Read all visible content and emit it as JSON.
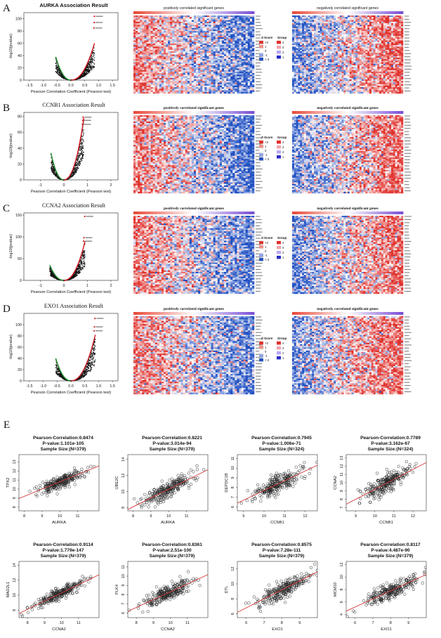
{
  "figure": {
    "panel_letters": [
      "A",
      "B",
      "C",
      "D",
      "E"
    ]
  },
  "rows": [
    {
      "letter": "A",
      "volcano_title": "AURKA Association Result",
      "heatmap_pos_title": "positively correlated significant genes",
      "heatmap_neg_title": "negatively correlated significant genes",
      "xlabel": "Pearson Correlation Coefficient (Pearson test)",
      "ylabel": "-log10(pvalue)"
    },
    {
      "letter": "B",
      "volcano_title": "CCNB1 Association Result",
      "heatmap_pos_title": "positively correlated significant genes",
      "heatmap_neg_title": "negatively correlated significant genes",
      "xlabel": "Pearson Correlation Coefficient (Pearson test)",
      "ylabel": "-log10(pvalue)"
    },
    {
      "letter": "C",
      "volcano_title": "CCNA2 Association Result",
      "heatmap_pos_title": "positively correlated significant genes",
      "heatmap_neg_title": "negatively correlated significant genes",
      "xlabel": "Pearson Correlation Coefficient (Pearson test)",
      "ylabel": "-log10(pvalue)"
    },
    {
      "letter": "D",
      "volcano_title": "EXO1 Association Result",
      "heatmap_pos_title": "positively correlated significant genes",
      "heatmap_neg_title": "negatively correlated significant genes",
      "xlabel": "Pearson Correlation Coefficient (Pearson test)",
      "ylabel": "-log10(pvalue)"
    }
  ],
  "heatmap_legend": {
    "zscore_title": "Z-Score",
    "group_title": "Group",
    "zscore_labels": [
      ">3",
      "1",
      "0",
      "-1",
      "<-3"
    ],
    "group_labels": [
      "4",
      "3",
      "2",
      "1"
    ]
  },
  "colors": {
    "positive": "#e0302b",
    "negative": "#1f4fc2",
    "neutral": "#ffffff",
    "volcano_pos": "#d0161d",
    "volcano_neg": "#1f8a2a",
    "point": "#111111",
    "fit_line": "#d43a3a"
  },
  "chart_data": [
    {
      "type": "scatter",
      "subtype": "volcano",
      "title": "AURKA Association Result",
      "xlabel": "Pearson Correlation Coefficient (Pearson test)",
      "ylabel": "-log10(pvalue)",
      "xlim": [
        -1.7,
        1.7
      ],
      "ylim": [
        0,
        110
      ],
      "xticks": [
        -1.5,
        -1.0,
        -0.5,
        0.0,
        0.5,
        1.0,
        1.5
      ],
      "xtick_labels": [
        "-1.5",
        "-1.0",
        "-0.5",
        "0.0",
        "0.5",
        "1.0",
        "1.5"
      ],
      "yticks": [
        0,
        20,
        40,
        60,
        80,
        100
      ],
      "ytick_labels": [
        "0",
        "20",
        "40",
        "60",
        "80",
        "100"
      ],
      "curve": {
        "neg_min": -0.55,
        "pos_max": 0.85,
        "ypeak_neg": 38,
        "ypeak_pos": 60
      },
      "highlight_points": [
        [
          0.85,
          104
        ],
        [
          0.84,
          94
        ],
        [
          0.83,
          85
        ]
      ]
    },
    {
      "type": "scatter",
      "subtype": "volcano",
      "title": "CCNB1 Association Result",
      "xlabel": "Pearson Correlation Coefficient (Pearson test)",
      "ylabel": "-log10(pvalue)",
      "xlim": [
        -1.7,
        2.3
      ],
      "ylim": [
        0,
        85
      ],
      "xticks": [
        -1,
        0,
        1,
        2
      ],
      "xtick_labels": [
        "-1",
        "0",
        "1",
        "2"
      ],
      "yticks": [
        0,
        20,
        40,
        60,
        80
      ],
      "ytick_labels": [
        "0",
        "20",
        "40",
        "60",
        "80"
      ],
      "curve": {
        "neg_min": -0.55,
        "pos_max": 0.85,
        "ypeak_neg": 34,
        "ypeak_pos": 78
      },
      "highlight_points": [
        [
          0.82,
          79
        ],
        [
          0.8,
          75
        ],
        [
          0.79,
          70
        ]
      ]
    },
    {
      "type": "scatter",
      "subtype": "volcano",
      "title": "CCNA2 Association Result",
      "xlabel": "Pearson Correlation Coefficient (Pearson test)",
      "ylabel": "-log10(pvalue)",
      "xlim": [
        -1.7,
        2.3
      ],
      "ylim": [
        0,
        155
      ],
      "xticks": [
        -1,
        0,
        1,
        2
      ],
      "xtick_labels": [
        "-1",
        "0",
        "1",
        "2"
      ],
      "yticks": [
        0,
        50,
        100,
        150
      ],
      "ytick_labels": [
        "0",
        "50",
        "100",
        "150"
      ],
      "curve": {
        "neg_min": -0.6,
        "pos_max": 0.9,
        "ypeak_neg": 35,
        "ypeak_pos": 90
      },
      "highlight_points": [
        [
          0.89,
          147
        ],
        [
          0.85,
          98
        ],
        [
          0.84,
          90
        ]
      ]
    },
    {
      "type": "scatter",
      "subtype": "volcano",
      "title": "EXO1 Association Result",
      "xlabel": "Pearson Correlation Coefficient (Pearson test)",
      "ylabel": "-log10(pvalue)",
      "xlim": [
        -1.7,
        1.7
      ],
      "ylim": [
        0,
        120
      ],
      "xticks": [
        -1.5,
        -1.0,
        -0.5,
        0.0,
        0.5,
        1.0,
        1.5
      ],
      "xtick_labels": [
        "-1.5",
        "-1.0",
        "-0.5",
        "0.0",
        "0.5",
        "1.0",
        "1.5"
      ],
      "yticks": [
        0,
        20,
        40,
        60,
        80,
        100
      ],
      "ytick_labels": [
        "0",
        "20",
        "40",
        "60",
        "80",
        "100"
      ],
      "curve": {
        "neg_min": -0.55,
        "pos_max": 0.88,
        "ypeak_neg": 40,
        "ypeak_pos": 82
      },
      "highlight_points": [
        [
          0.87,
          111
        ],
        [
          0.85,
          96
        ],
        [
          0.84,
          89
        ]
      ]
    },
    {
      "type": "scatter",
      "subtype": "correlation",
      "title": "Pearson-Correlation:0.8474",
      "pvalue": "P-value:1.101e-105",
      "sample": "Sample Size:(N=379)",
      "xlabel": "AURKA",
      "ylabel": "TPX2",
      "xlim": [
        7.7,
        12.2
      ],
      "ylim": [
        7.6,
        13.8
      ],
      "xticks": [
        8,
        9,
        10,
        11
      ],
      "xtick_labels": [
        "8",
        "9",
        "10",
        "11"
      ],
      "yticks": [
        8,
        9,
        10,
        11,
        12,
        13
      ],
      "ytick_labels": [
        "8",
        "9",
        "10",
        "11",
        "12",
        "13"
      ],
      "r": 0.8474,
      "n": 379,
      "x_mean": 10.0,
      "x_sd": 0.7,
      "fit": {
        "slope": 0.8,
        "intercept": 2.8
      }
    },
    {
      "type": "scatter",
      "subtype": "correlation",
      "title": "Pearson-Correlation:0.8221",
      "pvalue": "P-value:3.014e-94",
      "sample": "Sample Size:(N=379)",
      "xlabel": "AURKA",
      "ylabel": "UBE2C",
      "xlim": [
        7.7,
        12.2
      ],
      "ylim": [
        7.6,
        14.6
      ],
      "xticks": [
        8,
        9,
        10,
        11
      ],
      "xtick_labels": [
        "8",
        "9",
        "10",
        "11"
      ],
      "yticks": [
        8,
        10,
        12,
        14
      ],
      "ytick_labels": [
        "8",
        "10",
        "12",
        "14"
      ],
      "r": 0.8221,
      "n": 379,
      "x_mean": 10.0,
      "x_sd": 0.7,
      "fit": {
        "slope": 1.1,
        "intercept": -0.7
      }
    },
    {
      "type": "scatter",
      "subtype": "correlation",
      "title": "Pearson-Correlation:0.7945",
      "pvalue": "P-value:1.006e-71",
      "sample": "Sample Size:(N=324)",
      "xlabel": "CCNB1",
      "ylabel": "DEPDC1B",
      "xlim": [
        8.7,
        12.6
      ],
      "ylim": [
        5.6,
        11.4
      ],
      "xticks": [
        9,
        10,
        11,
        12
      ],
      "xtick_labels": [
        "9",
        "10",
        "11",
        "12"
      ],
      "yticks": [
        6,
        7,
        8,
        9,
        10,
        11
      ],
      "ytick_labels": [
        "6",
        "7",
        "8",
        "9",
        "10",
        "11"
      ],
      "r": 0.7945,
      "n": 324,
      "x_mean": 10.6,
      "x_sd": 0.6,
      "fit": {
        "slope": 1.0,
        "intercept": -2.3
      }
    },
    {
      "type": "scatter",
      "subtype": "correlation",
      "title": "Pearson-Correlation:0.7789",
      "pvalue": "P-value:3.162e-67",
      "sample": "Sample Size:(N=324)",
      "xlabel": "CCNB1",
      "ylabel": "CCNA2",
      "xlim": [
        8.5,
        12.7
      ],
      "ylim": [
        6.6,
        13.4
      ],
      "xticks": [
        9,
        10,
        11,
        12
      ],
      "xtick_labels": [
        "9",
        "10",
        "11",
        "12"
      ],
      "yticks": [
        7,
        8,
        9,
        10,
        11,
        12,
        13
      ],
      "ytick_labels": [
        "7",
        "8",
        "9",
        "10",
        "11",
        "12",
        "13"
      ],
      "r": 0.7789,
      "n": 324,
      "x_mean": 10.6,
      "x_sd": 0.6,
      "fit": {
        "slope": 1.2,
        "intercept": -2.8
      }
    },
    {
      "type": "scatter",
      "subtype": "correlation",
      "title": "Pearson-Correlation:0.9114",
      "pvalue": "P-value:1.779e-147",
      "sample": "Sample Size:(N=379)",
      "xlabel": "CCNA2",
      "ylabel": "MAD2L1",
      "xlim": [
        7.5,
        12.2
      ],
      "ylim": [
        7.0,
        14.5
      ],
      "xticks": [
        8,
        9,
        10,
        11
      ],
      "xtick_labels": [
        "8",
        "9",
        "10",
        "11"
      ],
      "yticks": [
        8,
        10,
        12,
        14
      ],
      "ytick_labels": [
        "8",
        "10",
        "12",
        "14"
      ],
      "r": 0.9114,
      "n": 379,
      "x_mean": 9.9,
      "x_sd": 0.75,
      "fit": {
        "slope": 1.1,
        "intercept": -0.7
      }
    },
    {
      "type": "scatter",
      "subtype": "correlation",
      "title": "Pearson-Correlation:0.8361",
      "pvalue": "P-value:2.51e-100",
      "sample": "Sample Size:(N=379)",
      "xlabel": "CCNA2",
      "ylabel": "PLK4",
      "xlim": [
        7.5,
        12.2
      ],
      "ylim": [
        5.5,
        11.6
      ],
      "xticks": [
        8,
        9,
        10,
        11
      ],
      "xtick_labels": [
        "8",
        "9",
        "10",
        "11"
      ],
      "yticks": [
        6,
        7,
        8,
        9,
        10,
        11
      ],
      "ytick_labels": [
        "6",
        "7",
        "8",
        "9",
        "10",
        "11"
      ],
      "r": 0.8361,
      "n": 379,
      "x_mean": 9.9,
      "x_sd": 0.75,
      "fit": {
        "slope": 0.85,
        "intercept": -0.2
      }
    },
    {
      "type": "scatter",
      "subtype": "correlation",
      "title": "Pearson-Correlation:0.8575",
      "pvalue": "P-value:7.28e-111",
      "sample": "Sample Size:(N=379)",
      "xlabel": "EXO1",
      "ylabel": "DTL",
      "xlim": [
        5.5,
        10.0
      ],
      "ylim": [
        5.5,
        13.0
      ],
      "xticks": [
        6,
        7,
        8,
        9
      ],
      "xtick_labels": [
        "6",
        "7",
        "8",
        "9"
      ],
      "yticks": [
        6,
        8,
        10,
        12
      ],
      "ytick_labels": [
        "6",
        "8",
        "10",
        "12"
      ],
      "r": 0.8575,
      "n": 379,
      "x_mean": 8.0,
      "x_sd": 0.75,
      "fit": {
        "slope": 1.2,
        "intercept": -0.4
      }
    },
    {
      "type": "scatter",
      "subtype": "correlation",
      "title": "Pearson-Correlation:0.8117",
      "pvalue": "P-value:4.487e-90",
      "sample": "Sample Size:(N=379)",
      "xlabel": "EXO1",
      "ylabel": "MCM10",
      "xlim": [
        5.5,
        10.0
      ],
      "ylim": [
        3.5,
        12.5
      ],
      "xticks": [
        6,
        7,
        8,
        9
      ],
      "xtick_labels": [
        "6",
        "7",
        "8",
        "9"
      ],
      "yticks": [
        4,
        6,
        8,
        10,
        12
      ],
      "ytick_labels": [
        "4",
        "6",
        "8",
        "10",
        "12"
      ],
      "r": 0.8117,
      "n": 379,
      "x_mean": 8.0,
      "x_sd": 0.75,
      "fit": {
        "slope": 1.3,
        "intercept": -2.6
      }
    }
  ]
}
